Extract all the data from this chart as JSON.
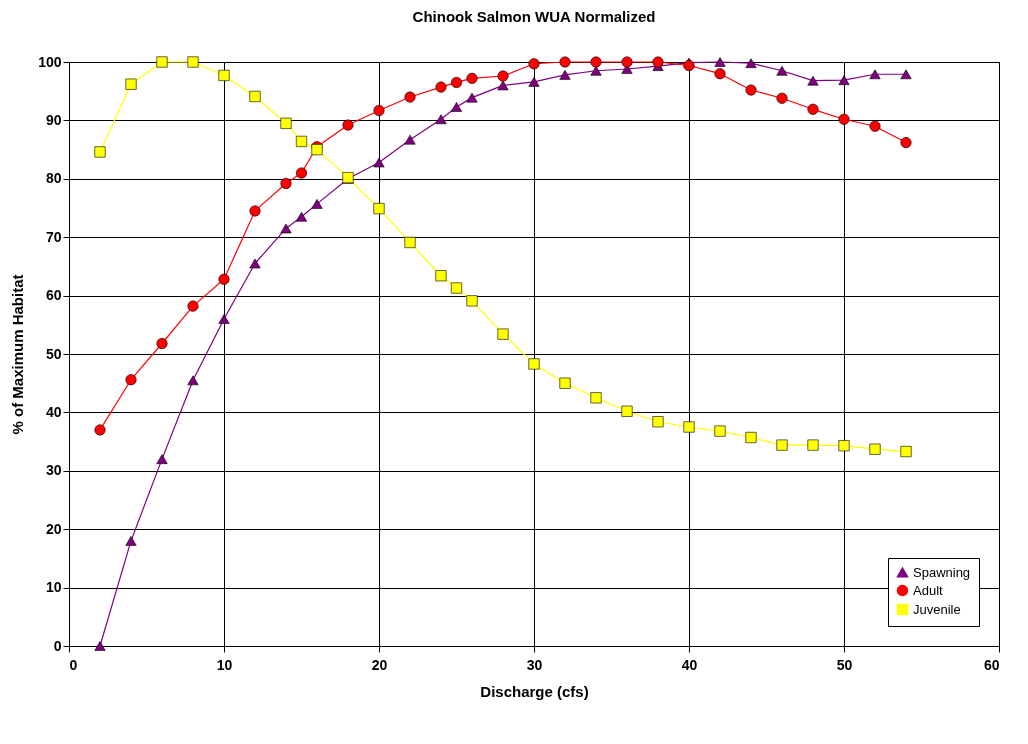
{
  "chart_data": {
    "type": "line",
    "title": "Chinook Salmon WUA Normalized",
    "xlabel": "Discharge (cfs)",
    "ylabel": "% of Maximum Habitat",
    "xlim": [
      0,
      60
    ],
    "xticks": [
      0,
      10,
      20,
      30,
      40,
      50,
      60
    ],
    "ylim": [
      0,
      100
    ],
    "yticks": [
      0,
      10,
      20,
      30,
      40,
      50,
      60,
      70,
      80,
      90,
      100
    ],
    "grid": true,
    "legend": "bottom right",
    "x": [
      2,
      4,
      6,
      8,
      10,
      12,
      14,
      15,
      16,
      18,
      20,
      22,
      24,
      25,
      26,
      28,
      30,
      32,
      34,
      36,
      38,
      40,
      42,
      44,
      46,
      48,
      50,
      52,
      54
    ],
    "series": [
      {
        "name": "Spawning",
        "color": "#800080",
        "marker": "triangle",
        "values": [
          0,
          18,
          32,
          45.5,
          56,
          65.5,
          71.5,
          73.5,
          75.7,
          80,
          82.8,
          86.7,
          90.2,
          92.3,
          93.9,
          96,
          96.6,
          97.8,
          98.5,
          98.8,
          99.3,
          99.9,
          100,
          99.8,
          98.5,
          96.8,
          96.9,
          97.9,
          97.9
        ]
      },
      {
        "name": "Adult",
        "color": "#ff0000",
        "marker": "circle",
        "values": [
          37,
          45.6,
          51.8,
          58.2,
          62.8,
          74.5,
          79.2,
          81,
          85.5,
          89.2,
          91.7,
          94,
          95.7,
          96.5,
          97.2,
          97.6,
          99.7,
          100,
          100,
          100,
          100,
          99.4,
          98,
          95.2,
          93.8,
          91.9,
          90.2,
          89,
          86.2
        ]
      },
      {
        "name": "Juvenile",
        "color": "#ffff00",
        "marker": "square",
        "values": [
          84.6,
          96.2,
          100,
          100,
          97.7,
          94.1,
          89.5,
          86.4,
          85,
          80.2,
          74.9,
          69.1,
          63.4,
          61.3,
          59.1,
          53.4,
          48.3,
          45,
          42.5,
          40.2,
          38.4,
          37.5,
          36.8,
          35.7,
          34.4,
          34.4,
          34.3,
          33.7,
          33.3
        ]
      }
    ]
  }
}
